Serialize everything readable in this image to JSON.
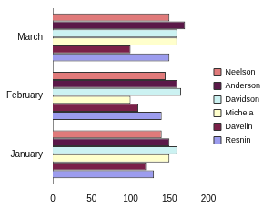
{
  "chart_data": {
    "type": "bar",
    "orientation": "horizontal",
    "categories": [
      "January",
      "February",
      "March"
    ],
    "series": [
      {
        "name": "Neelson",
        "color": "#e07a7a",
        "values": [
          140,
          145,
          150
        ]
      },
      {
        "name": "Anderson",
        "color": "#5a1848",
        "values": [
          150,
          160,
          170
        ]
      },
      {
        "name": "Davidson",
        "color": "#ccf2f2",
        "values": [
          160,
          165,
          160
        ]
      },
      {
        "name": "Michela",
        "color": "#ffffcc",
        "values": [
          150,
          100,
          160
        ]
      },
      {
        "name": "Davelin",
        "color": "#7a2048",
        "values": [
          120,
          110,
          100
        ]
      },
      {
        "name": "Resnin",
        "color": "#9c9cee",
        "values": [
          130,
          140,
          150
        ]
      }
    ],
    "xlim": [
      0,
      200
    ],
    "xticks": [
      0,
      50,
      100,
      150,
      200
    ],
    "grid": false,
    "legend": "right"
  }
}
